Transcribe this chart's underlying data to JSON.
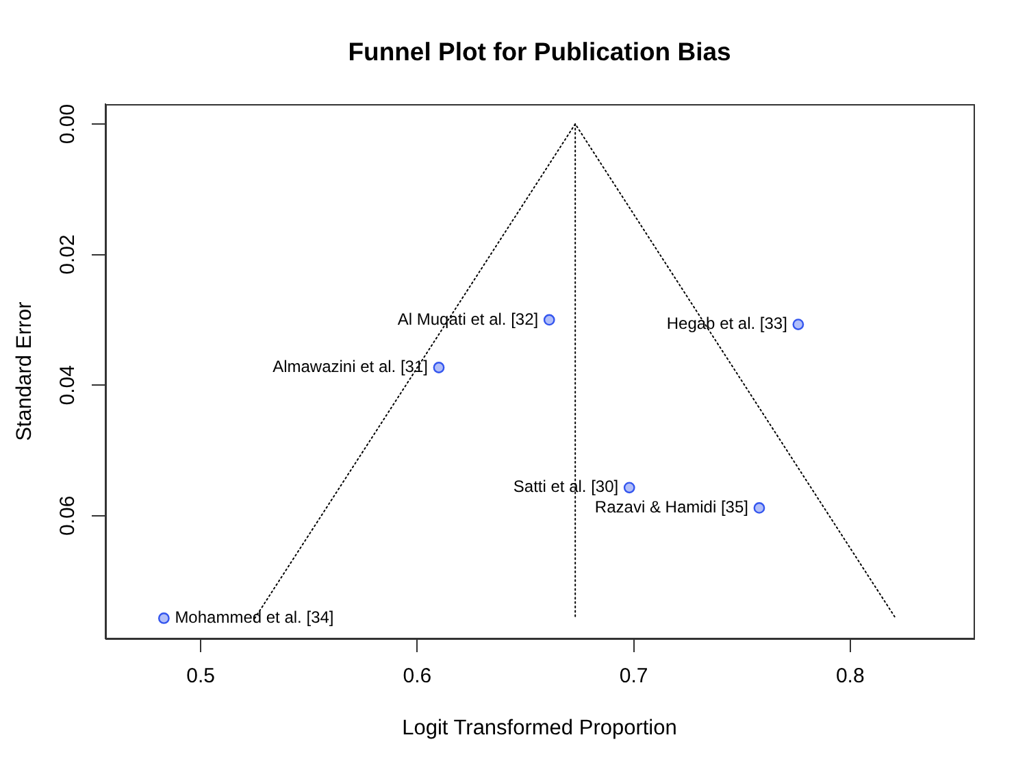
{
  "chart_data": {
    "type": "scatter",
    "title": "Funnel Plot for Publication Bias",
    "xlabel": "Logit Transformed Proportion",
    "ylabel": "Standard Error",
    "series": [
      {
        "type": "scatter",
        "color": "#3355ee",
        "marker": "circle",
        "x": [
          0.698,
          0.61,
          0.661,
          0.776,
          0.483,
          0.758
        ],
        "values": [
          0.0557,
          0.0373,
          0.03,
          0.0307,
          0.0757,
          0.0588
        ]
      },
      {
        "type": "line",
        "color": "#000000",
        "line_style": "dotted",
        "marker": "none",
        "x": [
          0.525,
          0.673,
          0.821
        ],
        "values": [
          0.0757,
          0,
          0.0757
        ]
      },
      {
        "type": "line",
        "color": "#000000",
        "line_style": "dotted",
        "marker": "none",
        "x": [
          0.673,
          0.673
        ],
        "values": [
          0,
          0.0757
        ]
      }
    ],
    "xlim": [
      0.456,
      0.857
    ],
    "ylim": [
      0.0788,
      -0.003
    ],
    "xticks": [
      0.5,
      0.6,
      0.7,
      0.8
    ],
    "yticks": [
      {
        "value": 0,
        "label": "0.00"
      },
      0.02,
      0.04,
      0.06
    ],
    "annotations": [
      {
        "text": "Satti et al. [30]",
        "x": 0.698,
        "y": 0.0557
      },
      {
        "text": "Almawazini et al. [31]",
        "x": 0.61,
        "y": 0.0373
      },
      {
        "text": "Al Muqati et al. [32]",
        "x": 0.661,
        "y": 0.03
      },
      {
        "text": "Hegab et al. [33]",
        "x": 0.776,
        "y": 0.0307
      },
      {
        "text": "Mohammed et al. [34]",
        "x": 0.483,
        "y": 0.0757
      },
      {
        "text": "Razavi & Hamidi [35]",
        "x": 0.758,
        "y": 0.0588
      }
    ]
  }
}
